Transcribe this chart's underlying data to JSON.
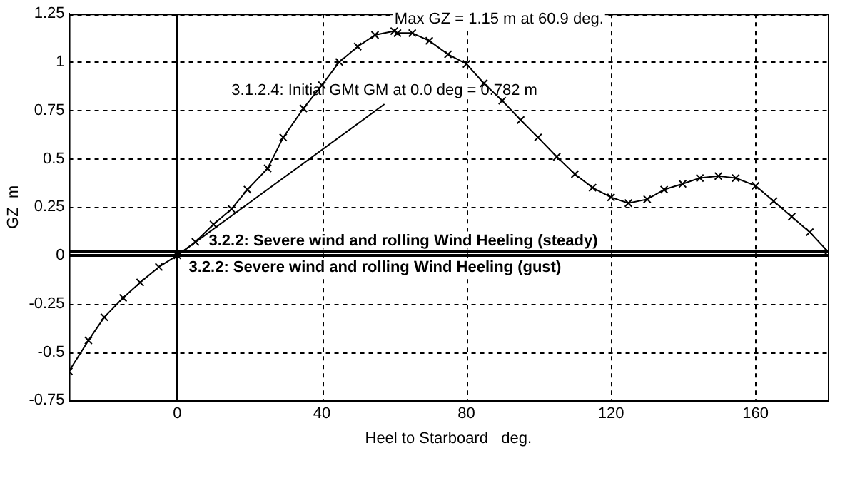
{
  "chart_data": {
    "type": "line",
    "xlabel": "Heel to Starboard   deg.",
    "ylabel": "GZ  m",
    "xlim": [
      -30,
      180
    ],
    "xticks": [
      0,
      40,
      80,
      120,
      160
    ],
    "ylim": [
      -0.75,
      1.25
    ],
    "yticks": [
      -0.75,
      -0.5,
      -0.25,
      0,
      0.25,
      0.5,
      0.75,
      1,
      1.25
    ],
    "grid": true,
    "legend": false,
    "series": [
      {
        "color": "#000000",
        "marker": "cross",
        "x": [
          -30,
          -24.6,
          -20.2,
          -15,
          -10.3,
          -5.1,
          0,
          5,
          10,
          15,
          19.4,
          25,
          29.3,
          34.9,
          40,
          44.8,
          49.9,
          54.7,
          60,
          60.9,
          65,
          69.7,
          74.9,
          80,
          84.8,
          89.9,
          95,
          99.8,
          105,
          110,
          114.9,
          120,
          124.8,
          130,
          134.7,
          139.8,
          144.6,
          149.7,
          154.5,
          160,
          165,
          170,
          175,
          180
        ],
        "values": [
          -0.6,
          -0.44,
          -0.32,
          -0.22,
          -0.14,
          -0.06,
          0,
          0.07,
          0.16,
          0.24,
          0.34,
          0.45,
          0.61,
          0.76,
          0.88,
          1,
          1.08,
          1.14,
          1.16,
          1.15,
          1.15,
          1.11,
          1.04,
          0.99,
          0.89,
          0.8,
          0.7,
          0.61,
          0.51,
          0.42,
          0.35,
          0.3,
          0.27,
          0.29,
          0.34,
          0.37,
          0.4,
          0.41,
          0.4,
          0.36,
          0.28,
          0.2,
          0.12,
          0.02
        ]
      },
      {
        "color": "#000000",
        "marker": "none",
        "x": [
          0,
          57.3
        ],
        "values": [
          0,
          0.782
        ]
      }
    ],
    "ref_lines": [
      {
        "axis": "x",
        "value": 0,
        "label": null
      },
      {
        "axis": "y",
        "value": 0.02,
        "label": "3.2.2: Severe wind and rolling Wind Heeling (steady)"
      },
      {
        "axis": "y",
        "value": 0,
        "label": "3.2.2: Severe wind and rolling Wind Heeling (gust)"
      }
    ],
    "annotations": [
      {
        "text": "Max GZ = 1.15 m at 60.9 deg.",
        "x": 60.9,
        "y": 1.15
      },
      {
        "text": "3.1.2.4: Initial GMt GM at 0.0 deg = 0.782 m",
        "x": 57.3,
        "y": 0.782
      }
    ]
  }
}
